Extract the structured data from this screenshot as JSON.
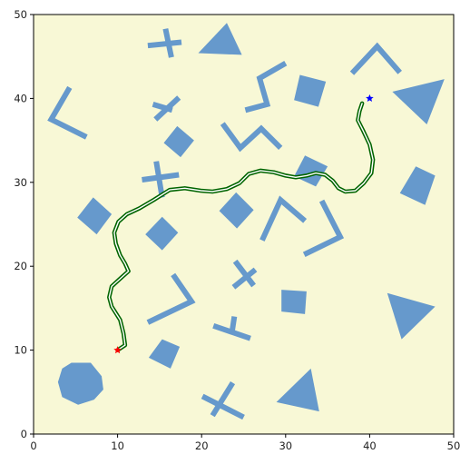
{
  "chart_data": {
    "type": "scatter",
    "title": "",
    "xlabel": "",
    "ylabel": "",
    "xlim": [
      0,
      50
    ],
    "ylim": [
      0,
      50
    ],
    "xticks": [
      0,
      10,
      20,
      30,
      40,
      50
    ],
    "yticks": [
      0,
      10,
      20,
      30,
      40,
      50
    ],
    "grid": false,
    "legend": "none",
    "colors": {
      "plot_background": "#f8f8d6",
      "obstacle": "#6699cc",
      "path_outer": "#006400",
      "path_inner": "#ffffff",
      "start_marker": "#ff0000",
      "goal_marker": "#0000ff"
    },
    "start": {
      "x": 10.0,
      "y": 10.0
    },
    "goal": {
      "x": 40.0,
      "y": 40.0
    },
    "path": [
      [
        10.0,
        10.0
      ],
      [
        10.9,
        10.6
      ],
      [
        10.7,
        12.0
      ],
      [
        10.3,
        13.6
      ],
      [
        9.3,
        15.2
      ],
      [
        9.0,
        16.3
      ],
      [
        9.3,
        17.6
      ],
      [
        10.4,
        18.6
      ],
      [
        11.3,
        19.4
      ],
      [
        10.9,
        20.3
      ],
      [
        10.3,
        21.3
      ],
      [
        9.8,
        22.7
      ],
      [
        9.6,
        24.0
      ],
      [
        10.1,
        25.3
      ],
      [
        11.1,
        26.2
      ],
      [
        12.6,
        26.9
      ],
      [
        14.3,
        27.9
      ],
      [
        16.2,
        29.1
      ],
      [
        18.0,
        29.3
      ],
      [
        19.9,
        29.0
      ],
      [
        21.3,
        28.9
      ],
      [
        23.0,
        29.2
      ],
      [
        24.5,
        29.9
      ],
      [
        25.6,
        31.0
      ],
      [
        27.0,
        31.4
      ],
      [
        28.6,
        31.2
      ],
      [
        30.0,
        30.8
      ],
      [
        31.2,
        30.6
      ],
      [
        32.5,
        30.8
      ],
      [
        33.6,
        31.1
      ],
      [
        34.7,
        30.9
      ],
      [
        35.6,
        30.2
      ],
      [
        36.3,
        29.3
      ],
      [
        37.1,
        28.9
      ],
      [
        38.3,
        29.0
      ],
      [
        39.3,
        29.9
      ],
      [
        40.2,
        31.1
      ],
      [
        40.4,
        32.7
      ],
      [
        40.0,
        34.5
      ],
      [
        39.2,
        36.2
      ],
      [
        38.6,
        37.4
      ],
      [
        38.8,
        38.5
      ],
      [
        39.1,
        39.4
      ]
    ],
    "obstacles": [
      {
        "type": "polygon",
        "points": [
          [
            23.0,
            49.0
          ],
          [
            24.8,
            45.2
          ],
          [
            19.6,
            45.4
          ]
        ]
      },
      {
        "type": "polygon",
        "points": [
          [
            48.9,
            42.3
          ],
          [
            46.8,
            36.9
          ],
          [
            42.7,
            40.8
          ]
        ]
      },
      {
        "type": "polygon",
        "points": [
          [
            42.1,
            16.8
          ],
          [
            47.8,
            15.2
          ],
          [
            43.8,
            11.3
          ]
        ]
      },
      {
        "type": "polygon",
        "points": [
          [
            33.0,
            7.8
          ],
          [
            34.0,
            2.7
          ],
          [
            28.9,
            3.8
          ]
        ]
      },
      {
        "type": "polygon",
        "points": [
          [
            31.7,
            42.8
          ],
          [
            34.8,
            42.0
          ],
          [
            33.9,
            39.0
          ],
          [
            31.0,
            39.8
          ]
        ]
      },
      {
        "type": "polygon",
        "points": [
          [
            17.1,
            36.7
          ],
          [
            19.1,
            35.0
          ],
          [
            17.5,
            33.0
          ],
          [
            15.5,
            34.7
          ]
        ]
      },
      {
        "type": "polygon",
        "points": [
          [
            32.3,
            33.2
          ],
          [
            35.0,
            31.9
          ],
          [
            33.6,
            29.5
          ],
          [
            31.0,
            30.7
          ]
        ]
      },
      {
        "type": "polygon",
        "points": [
          [
            24.1,
            28.8
          ],
          [
            26.2,
            26.7
          ],
          [
            24.2,
            24.5
          ],
          [
            22.1,
            26.6
          ]
        ]
      },
      {
        "type": "polygon",
        "points": [
          [
            7.1,
            28.2
          ],
          [
            9.3,
            26.2
          ],
          [
            7.5,
            23.8
          ],
          [
            5.2,
            25.8
          ]
        ]
      },
      {
        "type": "polygon",
        "points": [
          [
            15.3,
            25.9
          ],
          [
            17.2,
            24.0
          ],
          [
            15.3,
            21.9
          ],
          [
            13.3,
            23.8
          ]
        ]
      },
      {
        "type": "polygon",
        "points": [
          [
            45.5,
            31.9
          ],
          [
            47.8,
            30.8
          ],
          [
            46.6,
            27.3
          ],
          [
            43.6,
            28.7
          ]
        ]
      },
      {
        "type": "polygon",
        "points": [
          [
            29.5,
            17.2
          ],
          [
            32.5,
            17.0
          ],
          [
            32.3,
            14.3
          ],
          [
            29.5,
            14.6
          ]
        ]
      },
      {
        "type": "polygon",
        "points": [
          [
            15.3,
            11.3
          ],
          [
            17.4,
            10.4
          ],
          [
            16.3,
            7.8
          ],
          [
            13.7,
            9.1
          ]
        ]
      },
      {
        "type": "polygon",
        "points": [
          [
            4.5,
            8.5
          ],
          [
            6.8,
            8.5
          ],
          [
            8.1,
            6.9
          ],
          [
            8.3,
            5.3
          ],
          [
            7.2,
            4.1
          ],
          [
            5.3,
            3.5
          ],
          [
            3.4,
            4.4
          ],
          [
            2.9,
            6.2
          ],
          [
            3.4,
            7.8
          ]
        ]
      },
      {
        "type": "polyline",
        "points": [
          [
            15.7,
            48.3
          ],
          [
            16.4,
            44.9
          ]
        ]
      },
      {
        "type": "polyline",
        "points": [
          [
            13.6,
            46.3
          ],
          [
            17.6,
            46.7
          ]
        ]
      },
      {
        "type": "polyline",
        "points": [
          [
            4.3,
            41.3
          ],
          [
            2.1,
            37.5
          ],
          [
            6.3,
            35.4
          ]
        ]
      },
      {
        "type": "polyline",
        "points": [
          [
            14.5,
            37.5
          ],
          [
            17.3,
            40.1
          ]
        ]
      },
      {
        "type": "polyline",
        "points": [
          [
            14.2,
            39.3
          ],
          [
            16.5,
            38.6
          ]
        ]
      },
      {
        "type": "polyline",
        "points": [
          [
            25.2,
            38.6
          ],
          [
            27.8,
            39.3
          ],
          [
            26.9,
            42.4
          ],
          [
            30.0,
            44.2
          ]
        ]
      },
      {
        "type": "polyline",
        "points": [
          [
            22.5,
            37.0
          ],
          [
            24.6,
            34.1
          ],
          [
            27.1,
            36.4
          ],
          [
            29.4,
            34.1
          ]
        ]
      },
      {
        "type": "polyline",
        "points": [
          [
            37.9,
            43.0
          ],
          [
            40.9,
            46.2
          ],
          [
            43.6,
            43.1
          ]
        ]
      },
      {
        "type": "polyline",
        "points": [
          [
            14.6,
            32.5
          ],
          [
            15.3,
            28.2
          ]
        ]
      },
      {
        "type": "polyline",
        "points": [
          [
            12.9,
            30.3
          ],
          [
            17.3,
            30.9
          ]
        ]
      },
      {
        "type": "polyline",
        "points": [
          [
            27.2,
            23.1
          ],
          [
            29.4,
            27.9
          ],
          [
            32.3,
            25.4
          ]
        ]
      },
      {
        "type": "polyline",
        "points": [
          [
            34.3,
            27.8
          ],
          [
            36.5,
            23.5
          ],
          [
            32.2,
            21.4
          ]
        ]
      },
      {
        "type": "polyline",
        "points": [
          [
            24.0,
            20.6
          ],
          [
            26.2,
            17.7
          ]
        ]
      },
      {
        "type": "polyline",
        "points": [
          [
            23.8,
            17.5
          ],
          [
            26.4,
            19.6
          ]
        ]
      },
      {
        "type": "polyline",
        "points": [
          [
            16.6,
            19.0
          ],
          [
            18.8,
            15.8
          ],
          [
            13.6,
            13.3
          ]
        ]
      },
      {
        "type": "polyline",
        "points": [
          [
            21.4,
            12.9
          ],
          [
            25.8,
            11.4
          ]
        ]
      },
      {
        "type": "polyline",
        "points": [
          [
            23.9,
            14.0
          ],
          [
            23.6,
            12.0
          ]
        ]
      },
      {
        "type": "polyline",
        "points": [
          [
            21.3,
            2.2
          ],
          [
            23.7,
            6.1
          ]
        ]
      },
      {
        "type": "polyline",
        "points": [
          [
            20.1,
            4.5
          ],
          [
            25.0,
            2.0
          ]
        ]
      }
    ]
  }
}
